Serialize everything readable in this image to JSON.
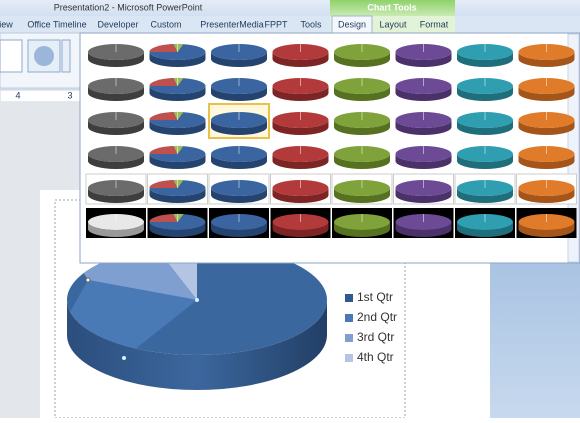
{
  "window": {
    "title": "Presentation2 - Microsoft PowerPoint",
    "context_tab": "Chart Tools"
  },
  "tabs": [
    "iew",
    "Office Timeline",
    "Developer",
    "Custom",
    "PresenterMedia",
    "FPPT",
    "Tools",
    "Design",
    "Layout",
    "Format"
  ],
  "ruler": [
    "4",
    "3"
  ],
  "legend": [
    "1st Qtr",
    "2nd Qtr",
    "3rd Qtr",
    "4th Qtr"
  ]
}
